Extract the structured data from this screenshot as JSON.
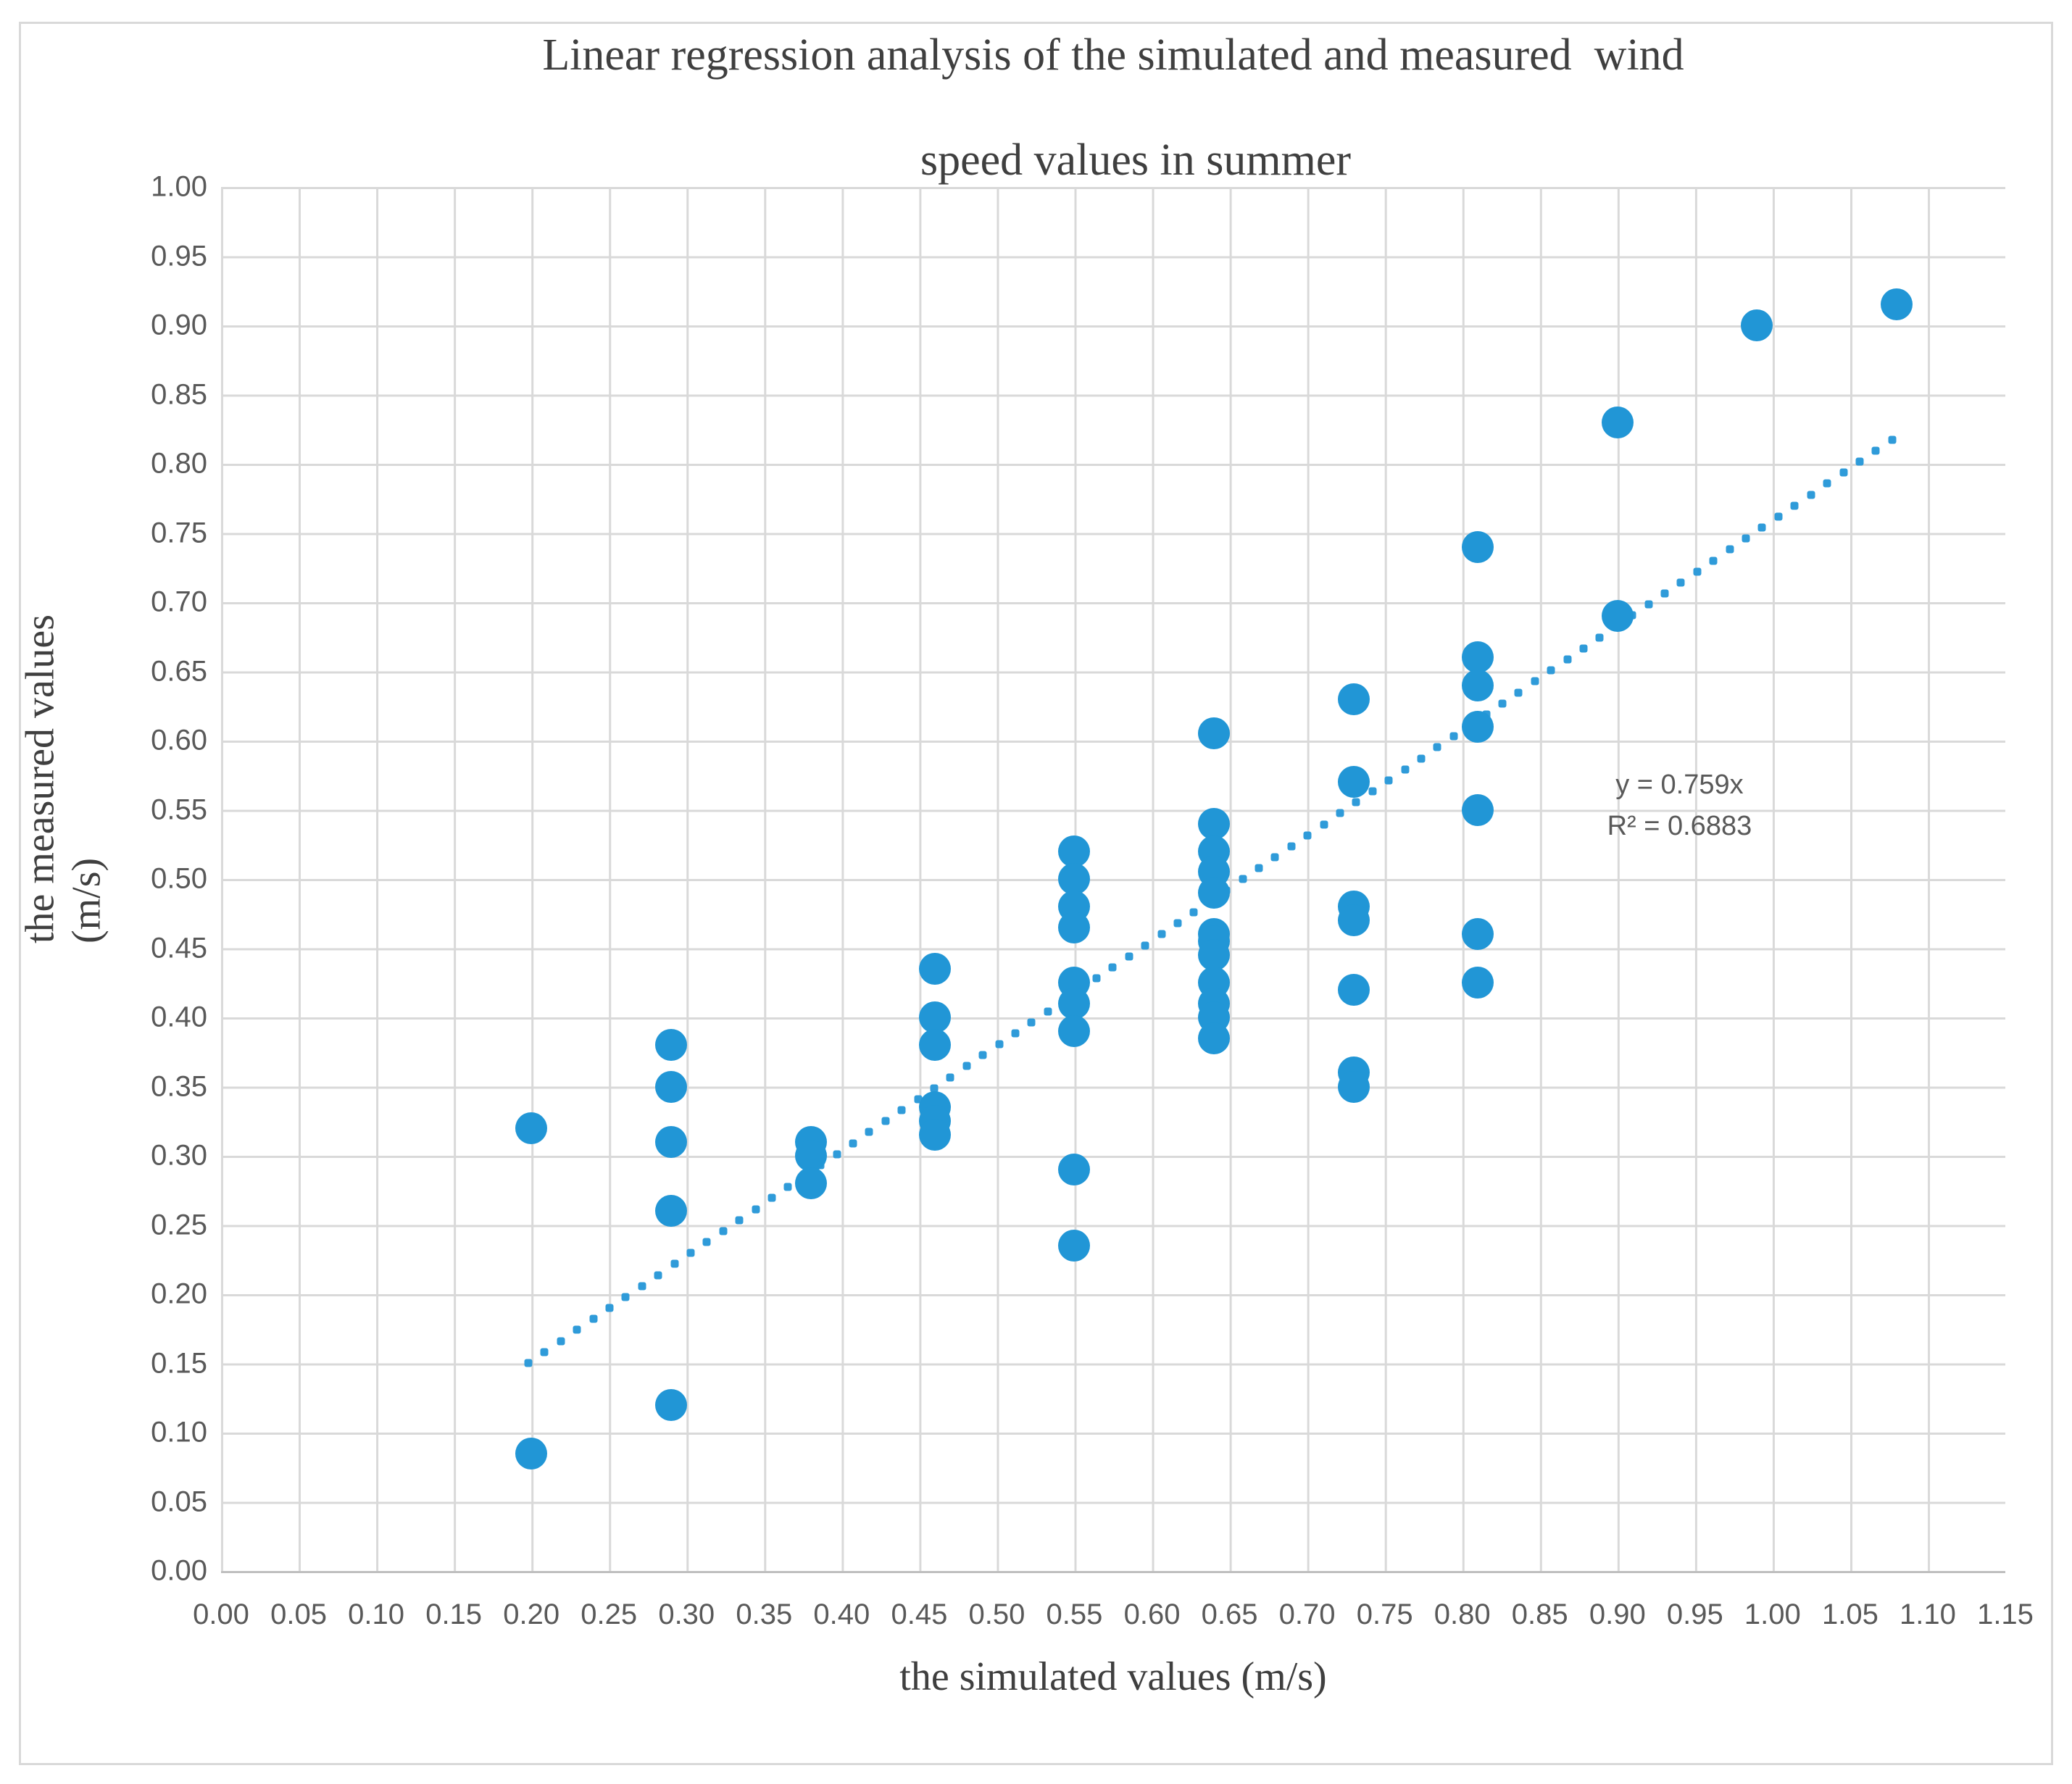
{
  "figure": {
    "title_line1": "Linear regression analysis of the simulated and measured  wind",
    "title_line2": "speed values in summer",
    "x_axis_title": "the simulated values (m/s)",
    "y_axis_title_line1": "the measured values",
    "y_axis_title_line2": "(m/s)"
  },
  "colors": {
    "point": "#2196d6",
    "trend": "#2f9bd9",
    "grid": "#d9d9d9",
    "axis": "#bfbfbf",
    "border": "#d9d9d9",
    "tick_text": "#595959",
    "annotation_text": "#595959",
    "title_text": "#3f3f3f"
  },
  "chart_data": {
    "type": "scatter",
    "title": "Linear regression analysis of the simulated and measured  wind speed values in summer",
    "xlabel": "the simulated values (m/s)",
    "ylabel": "the measured values (m/s)",
    "xlim": [
      0.0,
      1.15
    ],
    "ylim": [
      0.0,
      1.0
    ],
    "grid": true,
    "x_tick_labels": [
      "0.00",
      "0.05",
      "0.10",
      "0.15",
      "0.20",
      "0.25",
      "0.30",
      "0.35",
      "0.40",
      "0.45",
      "0.50",
      "0.55",
      "0.60",
      "0.65",
      "0.70",
      "0.75",
      "0.80",
      "0.85",
      "0.90",
      "0.95",
      "1.00",
      "1.05",
      "1.10",
      "1.15"
    ],
    "y_tick_labels": [
      "1.00",
      "0.95",
      "0.90",
      "0.85",
      "0.80",
      "0.75",
      "0.70",
      "0.65",
      "0.60",
      "0.55",
      "0.50",
      "0.45",
      "0.40",
      "0.35",
      "0.30",
      "0.25",
      "0.20",
      "0.15",
      "0.10",
      "0.05",
      "0.00"
    ],
    "points": [
      [
        0.2,
        0.32
      ],
      [
        0.2,
        0.085
      ],
      [
        0.29,
        0.38
      ],
      [
        0.29,
        0.35
      ],
      [
        0.29,
        0.31
      ],
      [
        0.29,
        0.26
      ],
      [
        0.29,
        0.12
      ],
      [
        0.38,
        0.31
      ],
      [
        0.38,
        0.3
      ],
      [
        0.38,
        0.28
      ],
      [
        0.46,
        0.435
      ],
      [
        0.46,
        0.4
      ],
      [
        0.46,
        0.38
      ],
      [
        0.46,
        0.335
      ],
      [
        0.46,
        0.325
      ],
      [
        0.46,
        0.315
      ],
      [
        0.55,
        0.52
      ],
      [
        0.55,
        0.5
      ],
      [
        0.55,
        0.48
      ],
      [
        0.55,
        0.465
      ],
      [
        0.55,
        0.425
      ],
      [
        0.55,
        0.41
      ],
      [
        0.55,
        0.39
      ],
      [
        0.55,
        0.29
      ],
      [
        0.55,
        0.235
      ],
      [
        0.64,
        0.605
      ],
      [
        0.64,
        0.54
      ],
      [
        0.64,
        0.52
      ],
      [
        0.64,
        0.505
      ],
      [
        0.64,
        0.49
      ],
      [
        0.64,
        0.46
      ],
      [
        0.64,
        0.455
      ],
      [
        0.64,
        0.445
      ],
      [
        0.64,
        0.425
      ],
      [
        0.64,
        0.41
      ],
      [
        0.64,
        0.4
      ],
      [
        0.64,
        0.385
      ],
      [
        0.73,
        0.63
      ],
      [
        0.73,
        0.57
      ],
      [
        0.73,
        0.48
      ],
      [
        0.73,
        0.47
      ],
      [
        0.73,
        0.42
      ],
      [
        0.73,
        0.36
      ],
      [
        0.73,
        0.35
      ],
      [
        0.81,
        0.74
      ],
      [
        0.81,
        0.66
      ],
      [
        0.81,
        0.64
      ],
      [
        0.81,
        0.61
      ],
      [
        0.81,
        0.55
      ],
      [
        0.81,
        0.46
      ],
      [
        0.81,
        0.425
      ],
      [
        0.9,
        0.83
      ],
      [
        0.9,
        0.69
      ],
      [
        0.99,
        0.9
      ],
      [
        1.08,
        0.915
      ]
    ],
    "trendline": {
      "equation": "y = 0.759x",
      "slope": 0.759,
      "intercept": 0.0,
      "x_start": 0.198,
      "x_end": 1.077,
      "style": "dotted"
    },
    "annotation": {
      "line1": "y = 0.759x",
      "line2": "R² = 0.6883",
      "x": 0.94,
      "y": 0.553
    },
    "legend": null
  }
}
